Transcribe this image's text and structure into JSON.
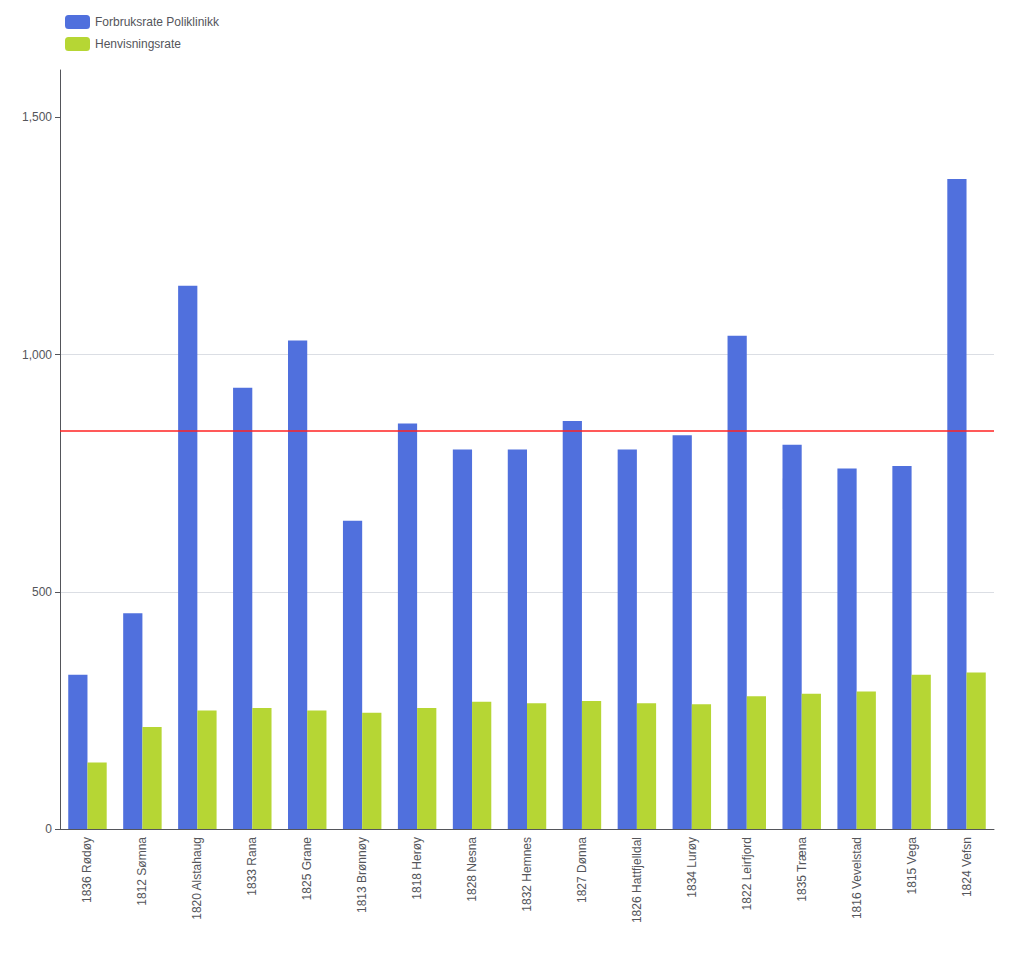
{
  "chart_data": {
    "type": "bar",
    "categories": [
      "1836 Rødøy",
      "1812 Sømna",
      "1820 Alstahaug",
      "1833 Rana",
      "1825 Grane",
      "1813 Brønnøy",
      "1818 Herøy",
      "1828 Nesna",
      "1832 Hemnes",
      "1827 Dønna",
      "1826 Hattfjelldal",
      "1834 Lurøy",
      "1822 Leirfjord",
      "1835 Træna",
      "1816 Vevelstad",
      "1815 Vega",
      "1824 Vefsn"
    ],
    "series": [
      {
        "name": "Forbruksrate Poliklinikk",
        "values": [
          325,
          455,
          1145,
          930,
          1030,
          650,
          855,
          800,
          800,
          860,
          800,
          830,
          1040,
          810,
          760,
          765,
          1370
        ]
      },
      {
        "name": "Henvisningsrate",
        "values": [
          140,
          215,
          250,
          255,
          250,
          245,
          255,
          268,
          265,
          270,
          265,
          263,
          280,
          285,
          290,
          325,
          330
        ]
      }
    ],
    "reference_lines": [
      {
        "value": 840,
        "color": "#ff2222"
      }
    ],
    "ylim": [
      0,
      1600
    ],
    "yticks": [
      0,
      500,
      1000,
      1500
    ],
    "grid": true,
    "legend": "upper left"
  }
}
